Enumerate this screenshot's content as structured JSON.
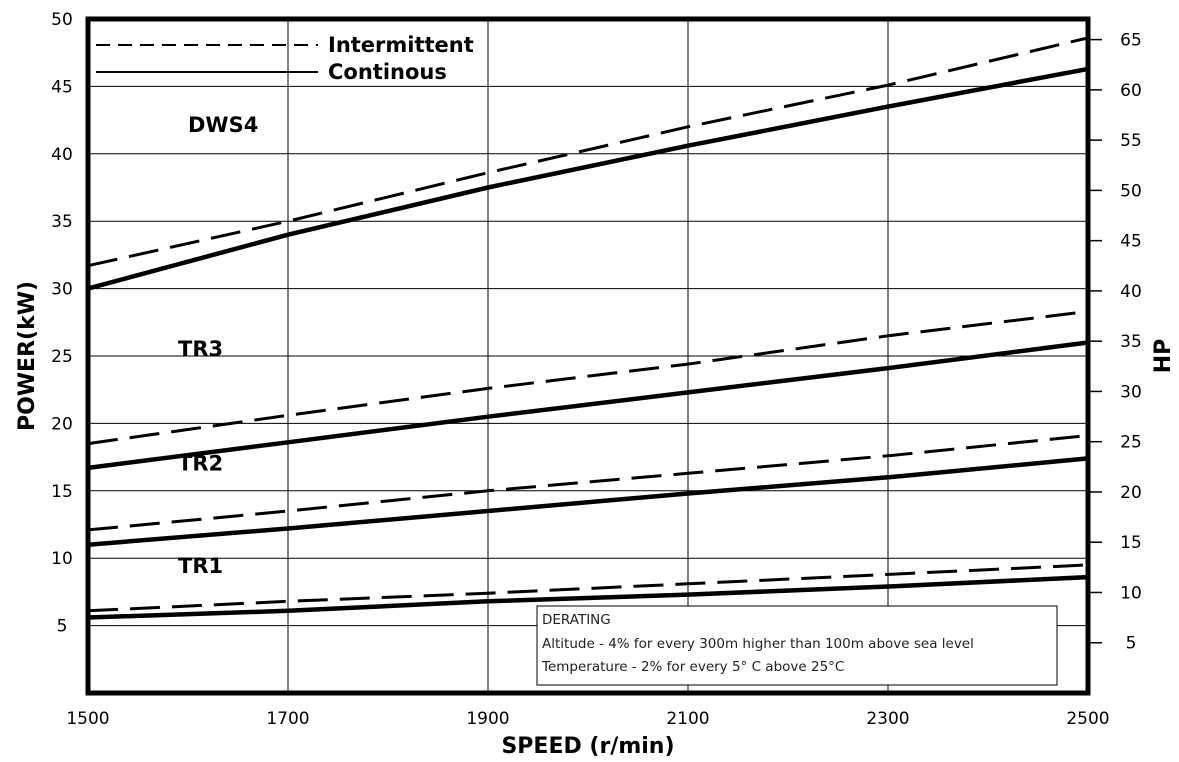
{
  "chart_data": {
    "type": "line",
    "title": "",
    "xlabel": "SPEED (r/min)",
    "ylabel": "POWER(kW)",
    "y2label": "HP",
    "xlim": [
      1500,
      2500
    ],
    "ylim": [
      0,
      50
    ],
    "y2lim": [
      0,
      67.05
    ],
    "x_ticks": [
      1500,
      1700,
      1900,
      2100,
      2300,
      2500
    ],
    "y_ticks": [
      5,
      10,
      15,
      20,
      25,
      30,
      35,
      40,
      45,
      50
    ],
    "y2_ticks": [
      5,
      10,
      15,
      20,
      25,
      30,
      35,
      40,
      45,
      50,
      55,
      60,
      65
    ],
    "grid": true,
    "legend_position": "top-left",
    "legend": [
      {
        "label": "Intermittent",
        "style": "dashed"
      },
      {
        "label": "Continous",
        "style": "solid"
      }
    ],
    "groups": [
      {
        "label": "DWS4",
        "series": [
          {
            "name": "Intermittent",
            "style": "dashed",
            "x": [
              1500,
              1700,
              1900,
              2100,
              2300,
              2500
            ],
            "y": [
              31.7,
              35.0,
              38.6,
              42.0,
              45.1,
              48.6
            ]
          },
          {
            "name": "Continous",
            "style": "solid",
            "x": [
              1500,
              1700,
              1900,
              2100,
              2300,
              2500
            ],
            "y": [
              30.0,
              34.0,
              37.5,
              40.6,
              43.5,
              46.3
            ]
          }
        ]
      },
      {
        "label": "TR3",
        "series": [
          {
            "name": "Intermittent",
            "style": "dashed",
            "x": [
              1500,
              1700,
              1900,
              2100,
              2300,
              2500
            ],
            "y": [
              18.5,
              20.6,
              22.6,
              24.4,
              26.5,
              28.3
            ]
          },
          {
            "name": "Continous",
            "style": "solid",
            "x": [
              1500,
              1700,
              1900,
              2100,
              2300,
              2500
            ],
            "y": [
              16.7,
              18.6,
              20.5,
              22.3,
              24.1,
              26.0
            ]
          }
        ]
      },
      {
        "label": "TR2",
        "series": [
          {
            "name": "Intermittent",
            "style": "dashed",
            "x": [
              1500,
              1700,
              1900,
              2100,
              2300,
              2500
            ],
            "y": [
              12.1,
              13.5,
              15.0,
              16.3,
              17.6,
              19.1
            ]
          },
          {
            "name": "Continous",
            "style": "solid",
            "x": [
              1500,
              1700,
              1900,
              2100,
              2300,
              2500
            ],
            "y": [
              11.0,
              12.2,
              13.5,
              14.8,
              16.0,
              17.4
            ]
          }
        ]
      },
      {
        "label": "TR1",
        "series": [
          {
            "name": "Intermittent",
            "style": "dashed",
            "x": [
              1500,
              1700,
              1900,
              2100,
              2300,
              2500
            ],
            "y": [
              6.1,
              6.8,
              7.4,
              8.1,
              8.8,
              9.5
            ]
          },
          {
            "name": "Continous",
            "style": "solid",
            "x": [
              1500,
              1700,
              1900,
              2100,
              2300,
              2500
            ],
            "y": [
              5.6,
              6.1,
              6.8,
              7.3,
              7.9,
              8.6
            ]
          }
        ]
      }
    ],
    "annotation": {
      "heading": "DERATING",
      "lines": [
        "Altitude - 4%  for every 300m higher than 100m above sea level",
        "Temperature - 2% for every 5° C above 25°C"
      ]
    },
    "colors": {
      "line": "#000000",
      "background": "#ffffff"
    }
  }
}
